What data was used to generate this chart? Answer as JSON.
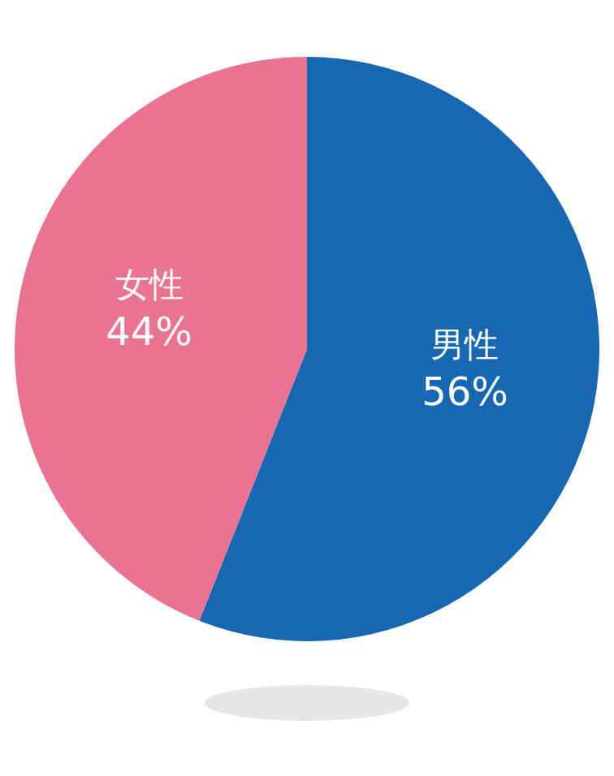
{
  "chart_data": {
    "type": "pie",
    "categories": [
      "男性",
      "女性"
    ],
    "values": [
      56,
      44
    ],
    "colors": [
      "#1767b2",
      "#ea7391"
    ],
    "value_labels": [
      "56%",
      "44%"
    ]
  }
}
